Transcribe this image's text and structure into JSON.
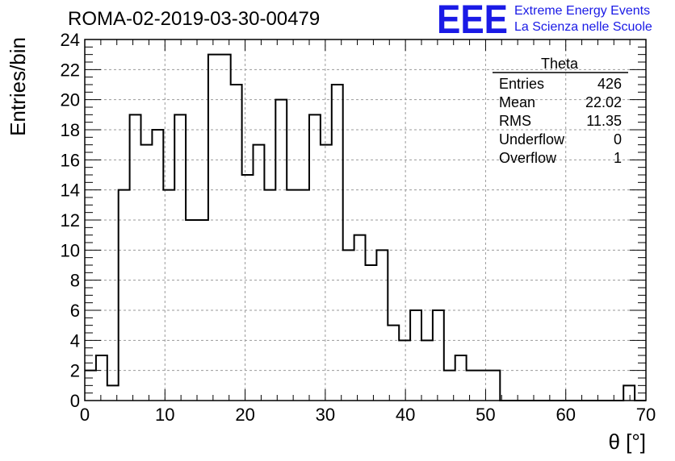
{
  "header": {
    "run_title": "ROMA-02-2019-03-30-00479",
    "logo_text": "EEE",
    "logo_line1": "Extreme Energy Events",
    "logo_line2": "La Scienza nelle Scuole",
    "logo_color": "#1a1ae6"
  },
  "stats_box": {
    "title": "Theta",
    "rows": [
      {
        "label": "Entries",
        "value": "426"
      },
      {
        "label": "Mean",
        "value": "22.02"
      },
      {
        "label": "RMS",
        "value": "11.35"
      },
      {
        "label": "Underflow",
        "value": "0"
      },
      {
        "label": "Overflow",
        "value": "1"
      }
    ]
  },
  "chart_data": {
    "type": "bar",
    "histogram": true,
    "xlabel": "θ [°]",
    "ylabel": "Entries/bin",
    "xlim": [
      0,
      70
    ],
    "ylim": [
      0,
      24
    ],
    "bin_width": 1.4,
    "grid": true,
    "x_ticks": [
      0,
      10,
      20,
      30,
      40,
      50,
      60,
      70
    ],
    "y_ticks": [
      0,
      2,
      4,
      6,
      8,
      10,
      12,
      14,
      16,
      18,
      20,
      22,
      24
    ],
    "values": [
      2,
      3,
      1,
      14,
      19,
      17,
      18,
      14,
      19,
      12,
      12,
      23,
      23,
      21,
      15,
      17,
      14,
      20,
      14,
      14,
      19,
      17,
      21,
      10,
      11,
      9,
      10,
      5,
      4,
      6,
      4,
      6,
      2,
      3,
      2,
      2,
      2,
      0,
      0,
      0,
      0,
      0,
      0,
      0,
      0,
      0,
      0,
      0,
      1,
      0
    ],
    "line_color": "#000000"
  }
}
